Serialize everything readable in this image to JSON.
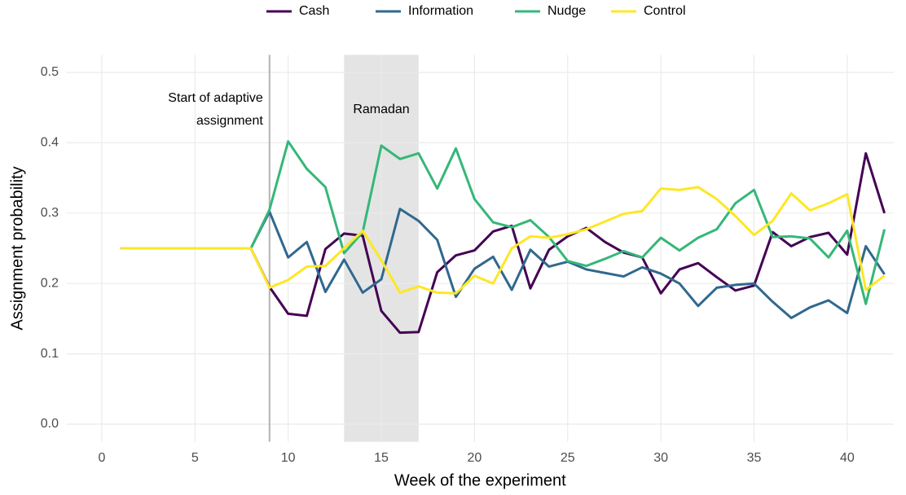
{
  "chart_data": {
    "type": "line",
    "x_label": "Week of the experiment",
    "y_label": "Assignment probability",
    "x": [
      1,
      2,
      3,
      4,
      5,
      6,
      7,
      8,
      9,
      10,
      11,
      12,
      13,
      14,
      15,
      16,
      17,
      18,
      19,
      20,
      21,
      22,
      23,
      24,
      25,
      26,
      27,
      28,
      29,
      30,
      31,
      32,
      33,
      34,
      35,
      36,
      37,
      38,
      39,
      40,
      41,
      42
    ],
    "series": [
      {
        "name": "Cash",
        "color": "#440154",
        "values": [
          0.25,
          0.25,
          0.25,
          0.25,
          0.25,
          0.25,
          0.25,
          0.25,
          0.195,
          0.157,
          0.154,
          0.249,
          0.271,
          0.268,
          0.161,
          0.13,
          0.131,
          0.216,
          0.24,
          0.247,
          0.274,
          0.282,
          0.193,
          0.248,
          0.267,
          0.279,
          0.259,
          0.244,
          0.237,
          0.186,
          0.22,
          0.229,
          0.209,
          0.19,
          0.197,
          0.273,
          0.253,
          0.266,
          0.272,
          0.241,
          0.385,
          0.3
        ]
      },
      {
        "name": "Information",
        "color": "#31688e",
        "values": [
          0.25,
          0.25,
          0.25,
          0.25,
          0.25,
          0.25,
          0.25,
          0.25,
          0.302,
          0.237,
          0.259,
          0.188,
          0.234,
          0.187,
          0.206,
          0.306,
          0.289,
          0.262,
          0.181,
          0.221,
          0.238,
          0.191,
          0.248,
          0.224,
          0.231,
          0.22,
          0.215,
          0.21,
          0.223,
          0.214,
          0.2,
          0.168,
          0.194,
          0.198,
          0.2,
          0.174,
          0.151,
          0.166,
          0.176,
          0.158,
          0.253,
          0.213
        ]
      },
      {
        "name": "Nudge",
        "color": "#35b779",
        "values": [
          0.25,
          0.25,
          0.25,
          0.25,
          0.25,
          0.25,
          0.25,
          0.25,
          0.305,
          0.402,
          0.363,
          0.337,
          0.243,
          0.273,
          0.396,
          0.377,
          0.385,
          0.335,
          0.392,
          0.32,
          0.287,
          0.28,
          0.29,
          0.266,
          0.232,
          0.225,
          0.235,
          0.246,
          0.237,
          0.265,
          0.247,
          0.265,
          0.277,
          0.314,
          0.333,
          0.266,
          0.267,
          0.264,
          0.237,
          0.275,
          0.171,
          0.277
        ]
      },
      {
        "name": "Control",
        "color": "#fde725",
        "values": [
          0.25,
          0.25,
          0.25,
          0.25,
          0.25,
          0.25,
          0.25,
          0.25,
          0.194,
          0.205,
          0.224,
          0.225,
          0.25,
          0.275,
          0.233,
          0.187,
          0.196,
          0.187,
          0.186,
          0.211,
          0.2,
          0.25,
          0.267,
          0.265,
          0.27,
          0.277,
          0.288,
          0.299,
          0.303,
          0.335,
          0.333,
          0.337,
          0.32,
          0.296,
          0.269,
          0.289,
          0.328,
          0.304,
          0.314,
          0.327,
          0.191,
          0.211
        ]
      }
    ],
    "xlim": [
      -1.9,
      42.5
    ],
    "ylim": [
      -0.025,
      0.525
    ],
    "xticks": [
      0,
      5,
      10,
      15,
      20,
      25,
      30,
      35,
      40
    ],
    "yticks": [
      {
        "value": 0,
        "label": "0.0"
      },
      0.1,
      0.2,
      0.3,
      0.4,
      0.5
    ],
    "grid": true,
    "legend": "top",
    "vline": 9,
    "vline_label": [
      "Start of adaptive",
      "assignment"
    ],
    "shade": [
      13,
      17
    ],
    "shade_label": "Ramadan"
  }
}
